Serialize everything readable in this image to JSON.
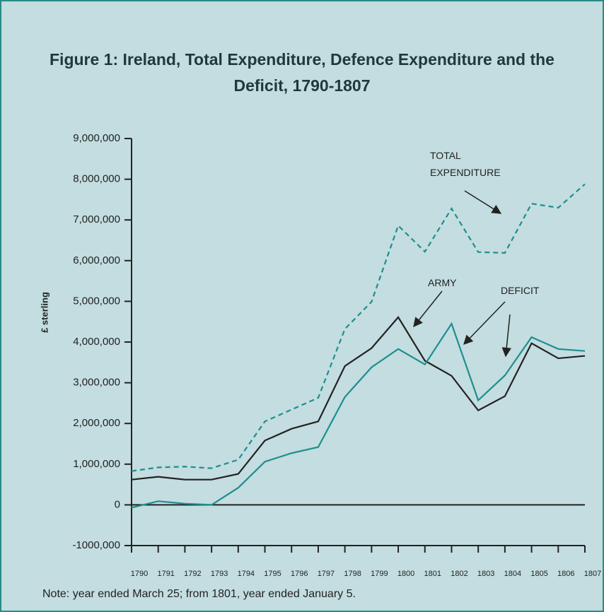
{
  "chart_data": {
    "type": "line",
    "title": "Figure 1: Ireland, Total Expenditure, Defence Expenditure and the Deficit, 1790-1807",
    "ylabel": "£ sterling",
    "note": "Note: year ended March 25; from 1801, year ended January 5.",
    "x": [
      1790,
      1791,
      1792,
      1793,
      1794,
      1795,
      1796,
      1797,
      1798,
      1799,
      1800,
      1801,
      1802,
      1803,
      1804,
      1805,
      1806,
      1807
    ],
    "xlim": [
      1790,
      1807
    ],
    "xticks": [
      1790,
      1791,
      1792,
      1793,
      1794,
      1795,
      1796,
      1797,
      1798,
      1799,
      1800,
      1801,
      1802,
      1803,
      1804,
      1805,
      1806,
      1807
    ],
    "ylim": [
      -1000000,
      9000000
    ],
    "yticks": [
      {
        "value": -1000000,
        "label": "-1000,000"
      },
      0,
      {
        "value": 1000000,
        "label": "1,000,000"
      },
      {
        "value": 2000000,
        "label": "2,000,000"
      },
      {
        "value": 3000000,
        "label": "3,000,000"
      },
      {
        "value": 4000000,
        "label": "4,000,000"
      },
      {
        "value": 5000000,
        "label": "5,000,000"
      },
      {
        "value": 6000000,
        "label": "6,000,000"
      },
      {
        "value": 7000000,
        "label": "7,000,000"
      },
      {
        "value": 8000000,
        "label": "8,000,000"
      },
      {
        "value": 9000000,
        "label": "9,000,000"
      }
    ],
    "series": [
      {
        "name": "TOTAL EXPENDITURE",
        "color": "#1f8e8e",
        "dashed": true,
        "values": [
          830000,
          920000,
          940000,
          900000,
          1110000,
          2050000,
          2340000,
          2630000,
          4320000,
          4990000,
          6860000,
          6220000,
          7280000,
          6210000,
          6190000,
          7400000,
          7300000,
          7880000
        ]
      },
      {
        "name": "ARMY",
        "color": "#222222",
        "dashed": false,
        "values": [
          620000,
          690000,
          620000,
          620000,
          760000,
          1580000,
          1870000,
          2050000,
          3410000,
          3850000,
          4610000,
          3540000,
          3170000,
          2320000,
          2670000,
          3970000,
          3600000,
          3660000
        ]
      },
      {
        "name": "DEFICIT",
        "color": "#1f8e8e",
        "dashed": false,
        "values": [
          -70000,
          90000,
          30000,
          0,
          420000,
          1060000,
          1270000,
          1420000,
          2650000,
          3380000,
          3830000,
          3450000,
          4450000,
          2570000,
          3180000,
          4120000,
          3830000,
          3780000
        ]
      }
    ]
  }
}
